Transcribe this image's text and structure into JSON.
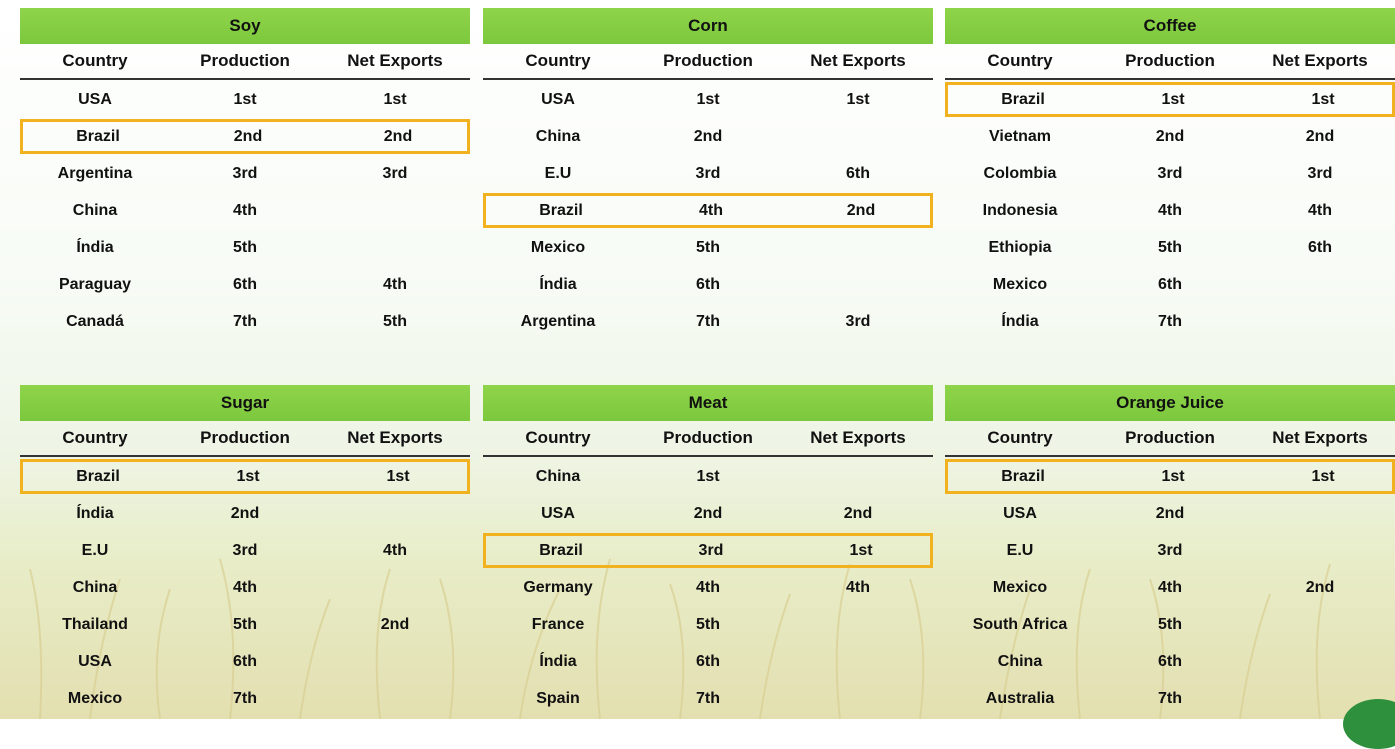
{
  "headers": {
    "country": "Country",
    "production": "Production",
    "net_exports": "Net Exports"
  },
  "tables": [
    {
      "title": "Soy",
      "rows": [
        {
          "country": "USA",
          "production": "1st",
          "net_exports": "1st",
          "highlight": false
        },
        {
          "country": "Brazil",
          "production": "2nd",
          "net_exports": "2nd",
          "highlight": true
        },
        {
          "country": "Argentina",
          "production": "3rd",
          "net_exports": "3rd",
          "highlight": false
        },
        {
          "country": "China",
          "production": "4th",
          "net_exports": "",
          "highlight": false
        },
        {
          "country": "Índia",
          "production": "5th",
          "net_exports": "",
          "highlight": false
        },
        {
          "country": "Paraguay",
          "production": "6th",
          "net_exports": "4th",
          "highlight": false
        },
        {
          "country": "Canadá",
          "production": "7th",
          "net_exports": "5th",
          "highlight": false
        }
      ]
    },
    {
      "title": "Corn",
      "rows": [
        {
          "country": "USA",
          "production": "1st",
          "net_exports": "1st",
          "highlight": false
        },
        {
          "country": "China",
          "production": "2nd",
          "net_exports": "",
          "highlight": false
        },
        {
          "country": "E.U",
          "production": "3rd",
          "net_exports": "6th",
          "highlight": false
        },
        {
          "country": "Brazil",
          "production": "4th",
          "net_exports": "2nd",
          "highlight": true
        },
        {
          "country": "Mexico",
          "production": "5th",
          "net_exports": "",
          "highlight": false
        },
        {
          "country": "Índia",
          "production": "6th",
          "net_exports": "",
          "highlight": false
        },
        {
          "country": "Argentina",
          "production": "7th",
          "net_exports": "3rd",
          "highlight": false
        }
      ]
    },
    {
      "title": "Coffee",
      "rows": [
        {
          "country": "Brazil",
          "production": "1st",
          "net_exports": "1st",
          "highlight": true
        },
        {
          "country": "Vietnam",
          "production": "2nd",
          "net_exports": "2nd",
          "highlight": false
        },
        {
          "country": "Colombia",
          "production": "3rd",
          "net_exports": "3rd",
          "highlight": false
        },
        {
          "country": "Indonesia",
          "production": "4th",
          "net_exports": "4th",
          "highlight": false
        },
        {
          "country": "Ethiopia",
          "production": "5th",
          "net_exports": "6th",
          "highlight": false
        },
        {
          "country": "Mexico",
          "production": "6th",
          "net_exports": "",
          "highlight": false
        },
        {
          "country": "Índia",
          "production": "7th",
          "net_exports": "",
          "highlight": false
        }
      ]
    },
    {
      "title": "Sugar",
      "rows": [
        {
          "country": "Brazil",
          "production": "1st",
          "net_exports": "1st",
          "highlight": true
        },
        {
          "country": "Índia",
          "production": "2nd",
          "net_exports": "",
          "highlight": false
        },
        {
          "country": "E.U",
          "production": "3rd",
          "net_exports": "4th",
          "highlight": false
        },
        {
          "country": "China",
          "production": "4th",
          "net_exports": "",
          "highlight": false
        },
        {
          "country": "Thailand",
          "production": "5th",
          "net_exports": "2nd",
          "highlight": false
        },
        {
          "country": "USA",
          "production": "6th",
          "net_exports": "",
          "highlight": false
        },
        {
          "country": "Mexico",
          "production": "7th",
          "net_exports": "",
          "highlight": false
        }
      ]
    },
    {
      "title": "Meat",
      "rows": [
        {
          "country": "China",
          "production": "1st",
          "net_exports": "",
          "highlight": false
        },
        {
          "country": "USA",
          "production": "2nd",
          "net_exports": "2nd",
          "highlight": false
        },
        {
          "country": "Brazil",
          "production": "3rd",
          "net_exports": "1st",
          "highlight": true
        },
        {
          "country": "Germany",
          "production": "4th",
          "net_exports": "4th",
          "highlight": false
        },
        {
          "country": "France",
          "production": "5th",
          "net_exports": "",
          "highlight": false
        },
        {
          "country": "Índia",
          "production": "6th",
          "net_exports": "",
          "highlight": false
        },
        {
          "country": "Spain",
          "production": "7th",
          "net_exports": "",
          "highlight": false
        }
      ]
    },
    {
      "title": "Orange Juice",
      "rows": [
        {
          "country": "Brazil",
          "production": "1st",
          "net_exports": "1st",
          "highlight": true
        },
        {
          "country": "USA",
          "production": "2nd",
          "net_exports": "",
          "highlight": false
        },
        {
          "country": "E.U",
          "production": "3rd",
          "net_exports": "",
          "highlight": false
        },
        {
          "country": "Mexico",
          "production": "4th",
          "net_exports": "2nd",
          "highlight": false
        },
        {
          "country": "South Africa",
          "production": "5th",
          "net_exports": "",
          "highlight": false
        },
        {
          "country": "China",
          "production": "6th",
          "net_exports": "",
          "highlight": false
        },
        {
          "country": "Australia",
          "production": "7th",
          "net_exports": "",
          "highlight": false
        }
      ]
    }
  ],
  "colors": {
    "header_green": "#7cc83d",
    "highlight_border": "#f2b11f"
  }
}
